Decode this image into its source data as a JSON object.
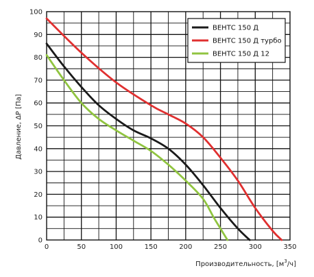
{
  "chart_data": {
    "type": "line",
    "title": "",
    "xlabel": "Производительность, [м",
    "xlabel_sup": "3",
    "xlabel_tail": "/ч]",
    "ylabel": "Давление, ΔP [Па]",
    "xlim": [
      0,
      350
    ],
    "ylim": [
      0,
      100
    ],
    "x_ticks": [
      "0",
      "50",
      "100",
      "150",
      "200",
      "250",
      "300",
      "350"
    ],
    "y_ticks": [
      "0",
      "10",
      "20",
      "30",
      "40",
      "50",
      "60",
      "70",
      "80",
      "90",
      "100"
    ],
    "grid": true,
    "legend_position": "top-right",
    "series": [
      {
        "name": "ВЕНТС 150 Д",
        "color": "#1a1a1a",
        "points": [
          [
            0,
            86
          ],
          [
            25,
            76
          ],
          [
            50,
            67
          ],
          [
            75,
            59
          ],
          [
            100,
            53
          ],
          [
            125,
            48
          ],
          [
            150,
            44.5
          ],
          [
            175,
            40
          ],
          [
            200,
            33
          ],
          [
            225,
            24
          ],
          [
            250,
            14
          ],
          [
            275,
            5
          ],
          [
            292,
            0
          ]
        ]
      },
      {
        "name": "ВЕНТС 150 Д турбо",
        "color": "#e03030",
        "points": [
          [
            0,
            97
          ],
          [
            50,
            82
          ],
          [
            100,
            69
          ],
          [
            150,
            59
          ],
          [
            175,
            55
          ],
          [
            200,
            51
          ],
          [
            225,
            45
          ],
          [
            250,
            36
          ],
          [
            275,
            26
          ],
          [
            300,
            14
          ],
          [
            325,
            4
          ],
          [
            338,
            0
          ]
        ]
      },
      {
        "name": "ВЕНТС 150 Д 12",
        "color": "#90c440",
        "points": [
          [
            0,
            81
          ],
          [
            25,
            70
          ],
          [
            50,
            60
          ],
          [
            75,
            53
          ],
          [
            100,
            48
          ],
          [
            125,
            43.5
          ],
          [
            150,
            39
          ],
          [
            175,
            33
          ],
          [
            200,
            26
          ],
          [
            225,
            18
          ],
          [
            240,
            10
          ],
          [
            250,
            5
          ],
          [
            260,
            0
          ]
        ]
      }
    ]
  }
}
